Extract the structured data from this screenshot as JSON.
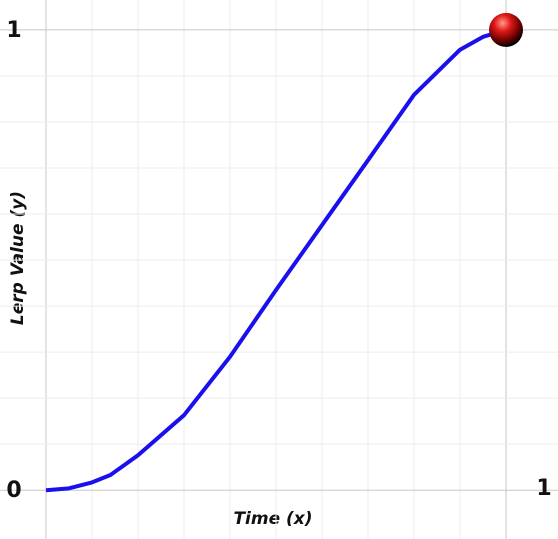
{
  "chart_data": {
    "type": "line",
    "xlabel": "Time (x)",
    "ylabel": "Lerp Value (y)",
    "x": [
      0,
      0.05,
      0.1,
      0.14,
      0.2,
      0.3,
      0.4,
      0.5,
      0.6,
      0.7,
      0.8,
      0.9,
      0.95,
      1
    ],
    "series": [
      {
        "color": "#1a10ee",
        "values": [
          0,
          0.004,
          0.017,
          0.033,
          0.076,
          0.163,
          0.29,
          0.435,
          0.576,
          0.717,
          0.859,
          0.957,
          0.985,
          1
        ]
      }
    ],
    "current_point": {
      "x": 1,
      "y": 1,
      "color": "#d01010"
    },
    "xlim": [
      -0.1,
      1.113
    ],
    "ylim": [
      -0.106,
      1.065
    ],
    "xticks": [
      1
    ],
    "yticks": [
      0,
      1
    ],
    "xgrid": [
      0,
      0.1,
      0.2,
      0.3,
      0.4,
      0.5,
      0.6,
      0.7,
      0.8,
      0.9,
      1
    ],
    "ygrid": [
      0,
      0.1,
      0.2,
      0.3,
      0.4,
      0.5,
      0.6,
      0.7,
      0.8,
      0.9,
      1
    ],
    "grid": true
  }
}
